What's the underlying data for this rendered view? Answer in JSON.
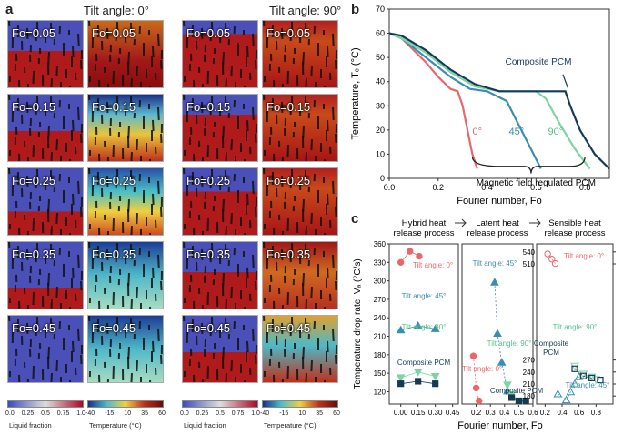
{
  "panel_a": {
    "letter": "a",
    "left_title": "Tilt angle: 0°",
    "right_title": "Tilt angle: 90°",
    "rows": [
      {
        "fo": "Fo=0.05",
        "lf0": 0.55,
        "lf90": 0.2,
        "temp0": "hot",
        "temp90": "hot"
      },
      {
        "fo": "Fo=0.15",
        "lf0": 0.45,
        "lf90": 0.3,
        "temp0": "mix",
        "temp90": "hot"
      },
      {
        "fo": "Fo=0.25",
        "lf0": 0.35,
        "lf90": 0.35,
        "temp0": "warm",
        "temp90": "hot"
      },
      {
        "fo": "Fo=0.35",
        "lf0": 0.3,
        "lf90": 0.45,
        "temp0": "cool",
        "temp90": "warm"
      },
      {
        "fo": "Fo=0.45",
        "lf0": 0.0,
        "lf90": 0.55,
        "temp0": "cool",
        "temp90": "mix"
      }
    ],
    "colorbars": [
      {
        "ticks": [
          "0.0",
          "0.25",
          "0.5",
          "0.75",
          "1.0"
        ],
        "title": "Liquid fraction"
      },
      {
        "ticks": [
          "-40",
          "-15",
          "10",
          "35",
          "60"
        ],
        "title": "Temperature (°C)"
      },
      {
        "ticks": [
          "0.0",
          "0.25",
          "0.5",
          "0.75",
          "1.0"
        ],
        "title": "Liquid fraction"
      },
      {
        "ticks": [
          "-40",
          "-15",
          "10",
          "35",
          "60"
        ],
        "title": "Temperature (°C)"
      }
    ]
  },
  "panel_b": {
    "letter": "b"
  },
  "panel_c": {
    "letter": "c",
    "headers": [
      "Hybrid heat release process",
      "Latent heat release process",
      "Sensible heat release process"
    ]
  },
  "colors": {
    "zero": "#e8676b",
    "forty_five": "#3a8fb0",
    "ninety": "#7fd4a4",
    "composite": "#163a56"
  },
  "chart_data": [
    {
      "type": "line",
      "panel": "b",
      "xlabel": "Fourier number, Fo",
      "ylabel": "Temperature, Tₑ (°C)",
      "xlim": [
        0,
        0.9
      ],
      "ylim": [
        0,
        70
      ],
      "xticks": [
        "0.0",
        "0.2",
        "0.4",
        "0.6",
        "0.8"
      ],
      "yticks": [
        "0",
        "10",
        "20",
        "30",
        "40",
        "50",
        "60",
        "70"
      ],
      "annotations": [
        "Composite PCM",
        "0°",
        "45°",
        "90°",
        "Magnetic field regulated PCM"
      ],
      "series": [
        {
          "name": "0°",
          "x": [
            0,
            0.05,
            0.15,
            0.2,
            0.25,
            0.28,
            0.3,
            0.32,
            0.34,
            0.36
          ],
          "y": [
            60,
            58,
            48,
            42,
            37,
            36,
            30,
            20,
            10,
            4
          ]
        },
        {
          "name": "45°",
          "x": [
            0,
            0.05,
            0.15,
            0.25,
            0.33,
            0.4,
            0.48,
            0.53,
            0.58,
            0.62
          ],
          "y": [
            60,
            58,
            50,
            42,
            37,
            36,
            32,
            22,
            12,
            4
          ]
        },
        {
          "name": "90°",
          "x": [
            0,
            0.05,
            0.15,
            0.25,
            0.35,
            0.45,
            0.55,
            0.6,
            0.64,
            0.7,
            0.76,
            0.82
          ],
          "y": [
            60,
            58,
            52,
            44,
            38,
            36,
            36,
            36,
            33,
            22,
            12,
            4
          ]
        },
        {
          "name": "Composite PCM",
          "x": [
            0,
            0.05,
            0.15,
            0.25,
            0.35,
            0.45,
            0.6,
            0.72,
            0.74,
            0.78,
            0.84,
            0.9
          ],
          "y": [
            60,
            59,
            53,
            45,
            39,
            36,
            36,
            36,
            30,
            20,
            10,
            4
          ]
        }
      ]
    },
    {
      "type": "scatter",
      "panel": "c",
      "ylabel": "Temperature drop rate, Vₐ (°C/s)",
      "xlabel": "Fourier number, Fo",
      "subplots": [
        {
          "header": "Hybrid heat release process",
          "xlim": [
            -0.1,
            0.5
          ],
          "ylim": [
            100,
            360
          ],
          "xticks": [
            "0.00",
            "0.15",
            "0.30",
            "0.45"
          ],
          "yticks": [
            "120",
            "150",
            "180",
            "210",
            "240",
            "270",
            "300",
            "330",
            "360"
          ],
          "series": [
            {
              "name": "Tilt angle: 0°",
              "x": [
                0.0,
                0.08,
                0.16
              ],
              "y": [
                330,
                348,
                340
              ]
            },
            {
              "name": "Tilt angle: 45°",
              "x": [
                0.0,
                0.15,
                0.3
              ],
              "y": [
                220,
                227,
                222
              ]
            },
            {
              "name": "Tilt angle: 90°",
              "x": [
                0.0,
                0.15,
                0.3
              ],
              "y": [
                143,
                152,
                145
              ]
            },
            {
              "name": "Composite PCM",
              "x": [
                0.0,
                0.15,
                0.3
              ],
              "y": [
                133,
                137,
                133
              ]
            }
          ]
        },
        {
          "header": "Latent heat release process",
          "xlim": [
            0.1,
            0.6
          ],
          "ylim": [
            0,
            5
          ],
          "xticks": [
            "0.2",
            "0.3",
            "0.4",
            "0.5",
            "0.6"
          ],
          "annotations": [
            "Tilt angle: 45°",
            "Tilt angle: 90°",
            "Tilt angle: 0°",
            "Composite PCM"
          ],
          "series": [
            {
              "name": "Tilt angle: 0°",
              "x": [
                0.18,
                0.2,
                0.22
              ],
              "y": [
                1.5,
                0.5,
                0.1
              ]
            },
            {
              "name": "Tilt angle: 45°",
              "x": [
                0.33,
                0.35,
                0.38,
                0.42
              ],
              "y": [
                3.8,
                2.2,
                1.3,
                0.4
              ]
            },
            {
              "name": "Tilt angle: 90°",
              "x": [
                0.42,
                0.45,
                0.5,
                0.53
              ],
              "y": [
                0.6,
                0.3,
                0.1,
                0.1
              ]
            },
            {
              "name": "Composite PCM",
              "x": [
                0.45,
                0.5,
                0.55
              ],
              "y": [
                0.2,
                0.1,
                0.1
              ]
            }
          ]
        },
        {
          "header": "Sensible heat release process",
          "xlim": [
            0.1,
            1.0
          ],
          "ylim": [
            160,
            560
          ],
          "xticks": [
            "0.2",
            "0.4",
            "0.6",
            "0.8"
          ],
          "yticks": [
            "180",
            "210",
            "240",
            "270",
            "510",
            "540"
          ],
          "series": [
            {
              "name": "Tilt angle: 0°",
              "x": [
                0.23,
                0.28,
                0.32
              ],
              "y": [
                535,
                522,
                511
              ]
            },
            {
              "name": "Tilt angle: 45°",
              "x": [
                0.35,
                0.45,
                0.5,
                0.55,
                0.6
              ],
              "y": [
                185,
                170,
                190,
                210,
                228
              ]
            },
            {
              "name": "Tilt angle: 90°",
              "x": [
                0.55,
                0.65,
                0.75,
                0.8
              ],
              "y": [
                255,
                235,
                228,
                222
              ]
            },
            {
              "name": "Composite PCM",
              "x": [
                0.55,
                0.65,
                0.75,
                0.85
              ],
              "y": [
                248,
                230,
                225,
                220
              ]
            }
          ]
        }
      ]
    }
  ]
}
